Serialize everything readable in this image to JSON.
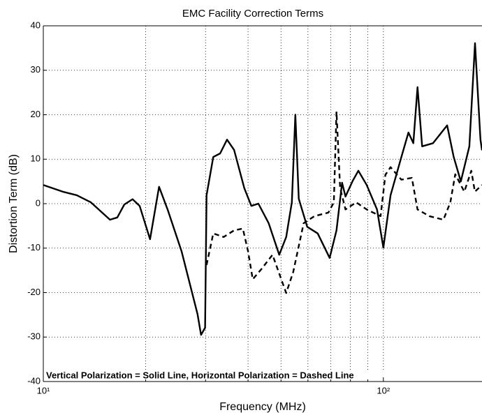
{
  "chart_data": {
    "type": "line",
    "title": "EMC Facility Correction Terms",
    "x_label": "Frequency (MHz)",
    "y_label": "Distortion Term (dB)",
    "annotation": "Vertical Polarization = Solid Line,  Horizontal Polarization = Dashed Line",
    "x_scale": "log",
    "xlim": [
      10,
      195
    ],
    "xticks": [
      {
        "value": 10,
        "label": "10¹"
      },
      {
        "value": 100,
        "label": "10²"
      }
    ],
    "xminor": [
      20,
      30,
      40,
      50,
      60,
      70,
      80,
      90
    ],
    "ylim": [
      -40,
      40
    ],
    "yticks": [
      -40,
      -30,
      -20,
      -10,
      0,
      10,
      20,
      30,
      40
    ],
    "grid": true,
    "series": [
      {
        "style": "solid",
        "color": "#000000",
        "x": [
          10,
          11.4,
          12.55,
          13.8,
          15.7,
          16.5,
          17.3,
          18.3,
          19.2,
          20.6,
          21.9,
          23.2,
          25.5,
          28.4,
          29.1,
          29.9,
          30.2,
          31.6,
          33.1,
          34.7,
          36.4,
          39.0,
          40.9,
          42.9,
          46.0,
          49.4,
          51.8,
          53.8,
          55.1,
          56.4,
          59.7,
          64.1,
          69.5,
          72.8,
          75.6,
          77.4,
          81.2,
          84.4,
          89.3,
          95.8,
          100,
          105,
          113,
          118.5,
          122.5,
          126,
          130,
          140,
          154,
          161,
          169,
          179,
          186,
          193,
          195
        ],
        "values": [
          4.2,
          2.7,
          1.9,
          0.3,
          -3.6,
          -3.1,
          -0.2,
          1.0,
          -0.5,
          -8.0,
          3.8,
          -1.3,
          -10.7,
          -24.8,
          -29.5,
          -27.9,
          1.9,
          10.5,
          11.3,
          14.4,
          12.1,
          3.5,
          -0.5,
          0,
          -4.4,
          -11.5,
          -7.5,
          0.3,
          20,
          1.1,
          -5.2,
          -6.7,
          -12.2,
          -6,
          4.7,
          1.6,
          5.1,
          7.4,
          4.2,
          -1.3,
          -9.9,
          1.9,
          10.5,
          16,
          13.6,
          26.2,
          12.9,
          13.6,
          17.6,
          10.5,
          5.0,
          12.9,
          36.1,
          14.4,
          12
        ]
      },
      {
        "style": "dashed",
        "color": "#000000",
        "x": [
          30.2,
          31.6,
          33.9,
          36.4,
          38.6,
          40.0,
          41.3,
          43.9,
          47.2,
          51.8,
          54.3,
          58.3,
          62.7,
          68.9,
          71.5,
          72.8,
          74.6,
          77.4,
          83.2,
          89.3,
          98.1,
          101.4,
          105,
          113,
          121.3,
          126,
          136.6,
          150.2,
          157.4,
          162.7,
          173,
          181.4,
          185.8,
          195
        ],
        "values": [
          -13.8,
          -6.7,
          -7.5,
          -6,
          -5.6,
          -10.7,
          -17,
          -14.6,
          -11.5,
          -20.1,
          -15.4,
          -4.4,
          -2.8,
          -2.0,
          0.3,
          20.7,
          3.5,
          -1.3,
          0.3,
          -1.3,
          -2.8,
          6.5,
          8.2,
          5.4,
          5.8,
          -1.3,
          -2.8,
          -3.6,
          0.3,
          6.6,
          2.7,
          7.4,
          2.7,
          4.2
        ]
      }
    ]
  }
}
